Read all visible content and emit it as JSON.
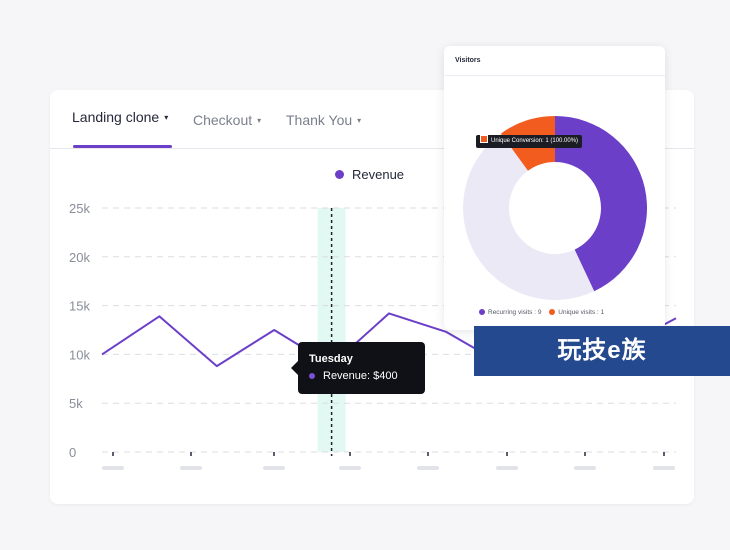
{
  "tabs": [
    {
      "label": "Landing clone",
      "caret": "▾"
    },
    {
      "label": "Checkout",
      "caret": "▾"
    },
    {
      "label": "Thank You",
      "caret": "▾"
    }
  ],
  "legend_label": "Revenue",
  "tooltip": {
    "title": "Tuesday",
    "value": "Revenue: $400"
  },
  "colors": {
    "accent": "#6c3fc8",
    "highlight": "#cff3ea",
    "orange": "#f25d1f",
    "light_slice": "#ece9f6"
  },
  "visitors": {
    "title": "Visitors",
    "tooltip": "Unique Conversion: 1 (100.00%)",
    "legend": [
      "Recurring visits : 9",
      "Unique visits : 1"
    ]
  },
  "watermark": "玩技e族",
  "chart_data": [
    {
      "type": "line",
      "series": [
        {
          "name": "Revenue",
          "values": [
            10000,
            13900,
            8800,
            12500,
            8900,
            14200,
            12300,
            8900,
            12600,
            10600,
            13700
          ]
        }
      ],
      "categories": [
        "",
        "",
        "",
        "",
        "",
        "",
        "",
        "",
        "",
        "",
        ""
      ],
      "yticks": [
        "25k",
        "20k",
        "15k",
        "10k",
        "5k",
        "0"
      ],
      "ytick_values": [
        25000,
        20000,
        15000,
        10000,
        5000,
        0
      ],
      "ylim": [
        0,
        25000
      ],
      "highlight_index": 4,
      "grid": true,
      "legend": "top"
    },
    {
      "type": "pie",
      "labels": [
        "Recurring visits",
        "Unique visits",
        ""
      ],
      "values": [
        9,
        1,
        0
      ],
      "display_fractions": [
        0.43,
        0.1,
        0.47
      ]
    }
  ]
}
